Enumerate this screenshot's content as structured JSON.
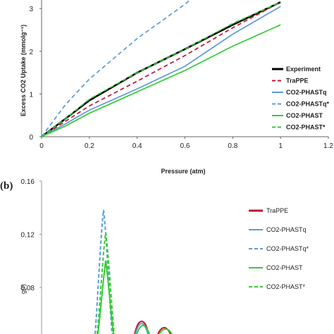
{
  "chart_data": [
    {
      "type": "line",
      "panel_label": "",
      "xlabel": "Pressure (atm)",
      "ylabel": "Excess CO2 Uptake (mmolg⁻¹)",
      "xlim": [
        0,
        1.2
      ],
      "ylim": [
        0,
        3.2
      ],
      "xticks": [
        "0",
        "0.2",
        "0.4",
        "0.6",
        "0.8",
        "1",
        "1.2"
      ],
      "yticks": [
        "0",
        "1",
        "2",
        "3"
      ],
      "grid": false,
      "legend": "right",
      "series": [
        {
          "name": "Experiment",
          "color": "#000000",
          "style": "solid",
          "x": [
            0,
            0.1,
            0.2,
            0.4,
            0.6,
            0.8,
            1.0
          ],
          "y": [
            0,
            0.42,
            0.85,
            1.5,
            2.05,
            2.62,
            3.15
          ]
        },
        {
          "name": "TraPPE",
          "color": "#c0142e",
          "style": "dashed",
          "x": [
            0,
            0.1,
            0.2,
            0.4,
            0.6,
            0.8,
            1.0
          ],
          "y": [
            0,
            0.36,
            0.72,
            1.3,
            1.9,
            2.55,
            3.15
          ]
        },
        {
          "name": "CO2-PHASTq",
          "color": "#5b9bd5",
          "style": "solid",
          "x": [
            0,
            0.1,
            0.2,
            0.4,
            0.6,
            0.8,
            1.0
          ],
          "y": [
            0,
            0.3,
            0.62,
            1.12,
            1.65,
            2.4,
            3.05
          ]
        },
        {
          "name": "CO2-PHASTq*",
          "color": "#5b9bd5",
          "style": "dashed",
          "x": [
            0,
            0.1,
            0.2,
            0.4,
            0.6,
            0.62
          ],
          "y": [
            0,
            0.75,
            1.35,
            2.3,
            3.1,
            3.2
          ]
        },
        {
          "name": "CO2-PHAST",
          "color": "#33cc33",
          "style": "solid",
          "x": [
            0,
            0.1,
            0.2,
            0.4,
            0.6,
            0.8,
            1.0
          ],
          "y": [
            0,
            0.25,
            0.55,
            1.05,
            1.55,
            2.12,
            2.62
          ]
        },
        {
          "name": "CO2-PHAST*",
          "color": "#33cc33",
          "style": "dashed",
          "x": [
            0,
            0.1,
            0.2,
            0.4,
            0.6,
            0.8,
            1.0
          ],
          "y": [
            0,
            0.42,
            0.88,
            1.5,
            2.05,
            2.65,
            3.15
          ]
        }
      ]
    },
    {
      "type": "line",
      "panel_label": "(b)",
      "xlabel": "",
      "ylabel": "g(r)",
      "ylim": [
        0.04,
        0.16
      ],
      "yticks": [
        "0.08",
        "0.12",
        "0.16"
      ],
      "grid": false,
      "legend": "right",
      "series": [
        {
          "name": "TraPPE",
          "color": "#c0142e",
          "style": "solid"
        },
        {
          "name": "CO2-PHASTq",
          "color": "#5b9bd5",
          "style": "solid"
        },
        {
          "name": "CO2-PHASTq*",
          "color": "#5b9bd5",
          "style": "dashed"
        },
        {
          "name": "CO2-PHAST",
          "color": "#33cc33",
          "style": "solid"
        },
        {
          "name": "CO2-PHAST*",
          "color": "#33cc33",
          "style": "dashed"
        }
      ]
    }
  ]
}
